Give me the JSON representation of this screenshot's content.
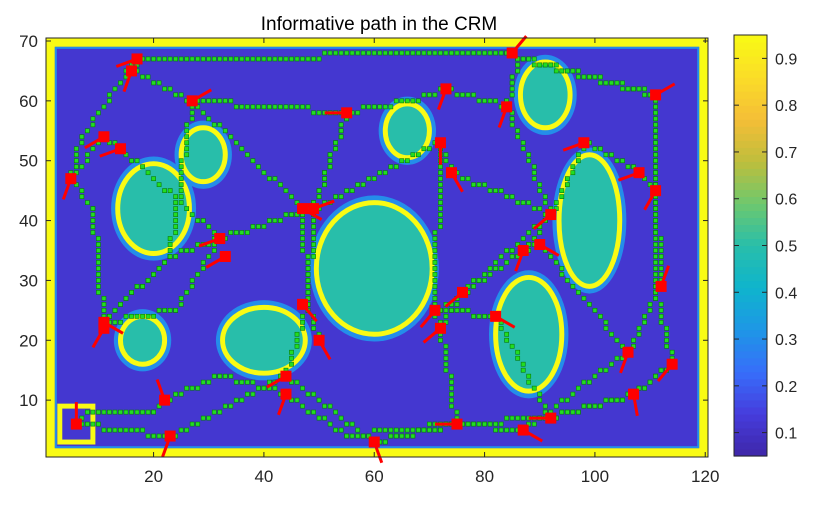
{
  "chart_data": {
    "type": "heatmap",
    "title": "Informative path in the CRM",
    "xlabel": "",
    "ylabel": "",
    "xlim": [
      0.5,
      120.5
    ],
    "ylim": [
      0.5,
      70.5
    ],
    "xticks": [
      20,
      40,
      60,
      80,
      100,
      120
    ],
    "yticks": [
      10,
      20,
      30,
      40,
      50,
      60,
      70
    ],
    "grid": false,
    "colormap": "parula",
    "colorbar": {
      "clim": [
        0.05,
        0.95
      ],
      "ticks": [
        0.1,
        0.2,
        0.3,
        0.4,
        0.5,
        0.6,
        0.7,
        0.8,
        0.9
      ],
      "placement": "right"
    },
    "field": {
      "background_value": 0.12,
      "border_value": 0.95,
      "obstacle_interior_value": 0.5,
      "obstacle_rim_value": 0.95,
      "obstacles": [
        {
          "cx": 20,
          "cy": 42,
          "rx": 6.5,
          "ry": 7.5
        },
        {
          "cx": 29,
          "cy": 51,
          "rx": 4,
          "ry": 4.5
        },
        {
          "cx": 66,
          "cy": 55,
          "rx": 4,
          "ry": 4.5
        },
        {
          "cx": 91,
          "cy": 61,
          "rx": 4.5,
          "ry": 5.5
        },
        {
          "cx": 99,
          "cy": 40,
          "rx": 5.5,
          "ry": 11
        },
        {
          "cx": 60,
          "cy": 32,
          "rx": 10.5,
          "ry": 11
        },
        {
          "cx": 88,
          "cy": 21,
          "rx": 6,
          "ry": 9.5
        },
        {
          "cx": 40,
          "cy": 20,
          "rx": 7.5,
          "ry": 5.5
        },
        {
          "cx": 18,
          "cy": 20,
          "rx": 4,
          "ry": 4
        }
      ],
      "start_box": {
        "x": 6,
        "y": 6,
        "half": 3
      }
    },
    "path_color": "#22dd22",
    "waypoint_color": "#ff0000",
    "path_segments": [
      [
        [
          6,
          6
        ],
        [
          8,
          8
        ],
        [
          20,
          8
        ],
        [
          22,
          10
        ]
      ],
      [
        [
          6,
          6
        ],
        [
          23,
          4
        ],
        [
          44,
          14
        ],
        [
          60,
          3
        ],
        [
          75,
          6
        ],
        [
          92,
          7
        ],
        [
          107,
          11
        ],
        [
          114,
          16
        ]
      ],
      [
        [
          22,
          10
        ],
        [
          32,
          14
        ],
        [
          44,
          11
        ],
        [
          55,
          4
        ],
        [
          75,
          6
        ],
        [
          87,
          5
        ],
        [
          106,
          18
        ],
        [
          112,
          29
        ],
        [
          111,
          45
        ]
      ],
      [
        [
          11,
          23
        ],
        [
          23,
          34
        ],
        [
          32,
          37
        ],
        [
          49,
          42
        ],
        [
          55,
          58
        ],
        [
          67,
          60
        ],
        [
          73,
          62
        ],
        [
          84,
          59
        ],
        [
          86,
          67
        ]
      ],
      [
        [
          11,
          22
        ],
        [
          9,
          42
        ],
        [
          5,
          47
        ],
        [
          7,
          54
        ],
        [
          17,
          67
        ],
        [
          16,
          65
        ],
        [
          27,
          60
        ],
        [
          55,
          58
        ]
      ],
      [
        [
          5,
          47
        ],
        [
          11,
          54
        ],
        [
          14,
          52
        ],
        [
          32,
          37
        ],
        [
          24,
          25
        ],
        [
          11,
          23
        ]
      ],
      [
        [
          27,
          60
        ],
        [
          47,
          42
        ],
        [
          48,
          26
        ],
        [
          50,
          20
        ]
      ],
      [
        [
          49,
          42
        ],
        [
          72,
          53
        ],
        [
          74,
          48
        ],
        [
          92,
          41
        ],
        [
          98,
          53
        ],
        [
          108,
          48
        ],
        [
          111,
          45
        ],
        [
          111,
          61
        ],
        [
          86,
          67
        ]
      ],
      [
        [
          86,
          67
        ],
        [
          84,
          59
        ],
        [
          85,
          57
        ],
        [
          92,
          41
        ],
        [
          87,
          35
        ],
        [
          90,
          36
        ],
        [
          106,
          18
        ]
      ],
      [
        [
          72,
          53
        ],
        [
          71,
          25
        ],
        [
          72,
          22
        ],
        [
          76,
          28
        ],
        [
          92,
          41
        ],
        [
          87,
          35
        ],
        [
          72,
          25
        ]
      ],
      [
        [
          72,
          22
        ],
        [
          75,
          6
        ],
        [
          60,
          3
        ]
      ],
      [
        [
          72,
          25
        ],
        [
          82,
          24
        ],
        [
          92,
          7
        ],
        [
          107,
          11
        ],
        [
          114,
          16
        ],
        [
          111,
          29
        ],
        [
          111,
          45
        ],
        [
          111,
          61
        ]
      ],
      [
        [
          48,
          26
        ],
        [
          49,
          42
        ],
        [
          55,
          58
        ]
      ],
      [
        [
          44,
          14
        ],
        [
          48,
          26
        ]
      ],
      [
        [
          16,
          65
        ],
        [
          17,
          67
        ],
        [
          84,
          68
        ],
        [
          111,
          61
        ]
      ],
      [
        [
          11,
          23
        ],
        [
          23,
          34
        ],
        [
          27,
          60
        ]
      ]
    ],
    "waypoints": [
      [
        6,
        6
      ],
      [
        22,
        10
      ],
      [
        23,
        4
      ],
      [
        44,
        14
      ],
      [
        44,
        11
      ],
      [
        60,
        3
      ],
      [
        75,
        6
      ],
      [
        87,
        5
      ],
      [
        92,
        7
      ],
      [
        107,
        11
      ],
      [
        114,
        16
      ],
      [
        106,
        18
      ],
      [
        112,
        29
      ],
      [
        111,
        45
      ],
      [
        108,
        48
      ],
      [
        98,
        53
      ],
      [
        92,
        41
      ],
      [
        87,
        35
      ],
      [
        90,
        36
      ],
      [
        82,
        24
      ],
      [
        76,
        28
      ],
      [
        72,
        22
      ],
      [
        71,
        25
      ],
      [
        50,
        20
      ],
      [
        47,
        26
      ],
      [
        49,
        42
      ],
      [
        47,
        42
      ],
      [
        32,
        37
      ],
      [
        33,
        34
      ],
      [
        11,
        23
      ],
      [
        11,
        22
      ],
      [
        5,
        47
      ],
      [
        14,
        52
      ],
      [
        11,
        54
      ],
      [
        27,
        60
      ],
      [
        16,
        65
      ],
      [
        17,
        67
      ],
      [
        55,
        58
      ],
      [
        73,
        62
      ],
      [
        72,
        53
      ],
      [
        74,
        48
      ],
      [
        84,
        59
      ],
      [
        85,
        68
      ],
      [
        111,
        61
      ]
    ],
    "waypoint_headings_deg": [
      90,
      110,
      250,
      210,
      250,
      290,
      180,
      330,
      180,
      280,
      230,
      250,
      70,
      240,
      200,
      200,
      220,
      250,
      330,
      330,
      220,
      220,
      230,
      300,
      310,
      20,
      330,
      200,
      210,
      330,
      240,
      250,
      200,
      210,
      30,
      250,
      200,
      180,
      250,
      270,
      300,
      250,
      50,
      30
    ]
  }
}
